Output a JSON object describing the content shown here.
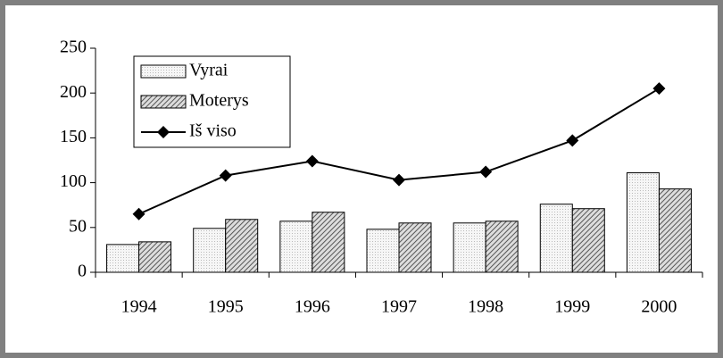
{
  "chart_data": {
    "type": "bar",
    "categories": [
      "1994",
      "1995",
      "1996",
      "1997",
      "1998",
      "1999",
      "2000"
    ],
    "series": [
      {
        "name": "Vyrai",
        "type": "bar",
        "color": "#e4e4e4",
        "values": [
          31,
          49,
          57,
          48,
          55,
          76,
          111
        ]
      },
      {
        "name": "Moterys",
        "type": "bar",
        "color": "#555555",
        "values": [
          34,
          59,
          67,
          55,
          57,
          71,
          93
        ]
      },
      {
        "name": "Iš viso",
        "type": "line",
        "color": "#000000",
        "values": [
          65,
          108,
          124,
          103,
          112,
          147,
          205
        ]
      }
    ],
    "ylim": [
      0,
      250
    ],
    "yticks": [
      0,
      50,
      100,
      150,
      200,
      250
    ],
    "grid": false,
    "legend": "upper left"
  }
}
